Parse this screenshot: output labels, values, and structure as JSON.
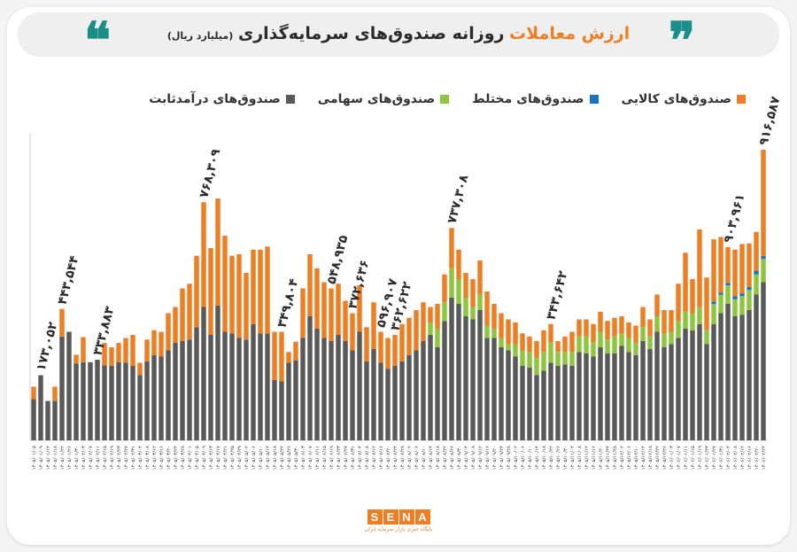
{
  "header": {
    "title_accent": "ارزش معاملات",
    "title_main": "روزانه صندوق‌های سرمایه‌گذاری",
    "title_unit": "(میلیارد ریال)"
  },
  "colors": {
    "fixed": "#595959",
    "equity": "#8cc63e",
    "mixed": "#1a75bc",
    "commodity": "#ef7d22",
    "accent": "#ef7d22",
    "quote": "#1a8e88"
  },
  "logo": {
    "letters": [
      "S",
      "E",
      "N",
      "A"
    ],
    "subtitle": "پایگاه خبری بازار سرمایه ایران"
  },
  "chart_data": {
    "type": "bar",
    "stacked": true,
    "ylim": [
      0,
      1000
    ],
    "grid": false,
    "legend": "top",
    "series": [
      {
        "name": "صندوق‌های درآمدثابت",
        "color": "#595959",
        "values": [
          133,
          210,
          127,
          127,
          335,
          350,
          248,
          252,
          252,
          260,
          242,
          240,
          252,
          250,
          240,
          210,
          255,
          275,
          270,
          290,
          315,
          320,
          325,
          365,
          430,
          340,
          435,
          350,
          345,
          330,
          325,
          375,
          345,
          345,
          195,
          190,
          250,
          258,
          330,
          400,
          360,
          330,
          320,
          340,
          320,
          290,
          350,
          255,
          295,
          250,
          230,
          240,
          255,
          275,
          290,
          320,
          340,
          300,
          385,
          460,
          440,
          400,
          390,
          420,
          330,
          330,
          300,
          290,
          270,
          240,
          235,
          210,
          225,
          250,
          240,
          245,
          240,
          285,
          280,
          270,
          300,
          280,
          280,
          305,
          285,
          275,
          320,
          295,
          350,
          300,
          310,
          330,
          360,
          355,
          375,
          310,
          375,
          410,
          440,
          400,
          405,
          420,
          470,
          510
        ]
      },
      {
        "name": "صندوق‌های سهامی",
        "color": "#8cc63e",
        "values": [
          0,
          0,
          0,
          0,
          0,
          0,
          0,
          0,
          0,
          0,
          0,
          0,
          0,
          0,
          0,
          0,
          0,
          0,
          0,
          0,
          0,
          0,
          0,
          0,
          0,
          0,
          0,
          0,
          0,
          0,
          0,
          0,
          0,
          0,
          0,
          0,
          0,
          0,
          0,
          0,
          0,
          0,
          0,
          0,
          0,
          0,
          0,
          0,
          0,
          0,
          0,
          0,
          0,
          0,
          0,
          0,
          40,
          60,
          60,
          95,
          80,
          60,
          40,
          50,
          40,
          30,
          30,
          20,
          40,
          50,
          50,
          55,
          60,
          65,
          45,
          40,
          45,
          50,
          55,
          45,
          50,
          45,
          55,
          40,
          45,
          40,
          45,
          40,
          50,
          45,
          40,
          55,
          55,
          55,
          55,
          45,
          65,
          60,
          60,
          55,
          60,
          65,
          65,
          75
        ]
      },
      {
        "name": "صندوق‌های مختلط",
        "color": "#1a75bc",
        "values": [
          0,
          0,
          0,
          0,
          0,
          0,
          0,
          0,
          0,
          0,
          0,
          0,
          0,
          0,
          0,
          0,
          0,
          0,
          0,
          0,
          0,
          0,
          0,
          0,
          0,
          0,
          0,
          0,
          0,
          0,
          0,
          0,
          0,
          0,
          0,
          0,
          0,
          0,
          0,
          0,
          0,
          0,
          0,
          0,
          0,
          0,
          0,
          0,
          0,
          0,
          0,
          0,
          0,
          0,
          0,
          0,
          0,
          0,
          0,
          0,
          0,
          0,
          0,
          0,
          0,
          0,
          0,
          0,
          0,
          0,
          0,
          0,
          0,
          0,
          0,
          0,
          0,
          0,
          0,
          0,
          0,
          0,
          0,
          0,
          0,
          0,
          0,
          0,
          0,
          0,
          0,
          0,
          0,
          0,
          0,
          0,
          8,
          6,
          8,
          10,
          8,
          10,
          12,
          10
        ]
      },
      {
        "name": "صندوق‌های کالایی",
        "color": "#ef7d22",
        "values": [
          40,
          0,
          0,
          46,
          89,
          0,
          28,
          81,
          0,
          0,
          72,
          60,
          62,
          80,
          100,
          40,
          70,
          80,
          80,
          120,
          115,
          170,
          180,
          230,
          338,
          280,
          345,
          310,
          250,
          270,
          215,
          240,
          270,
          280,
          155,
          160,
          35,
          60,
          160,
          200,
          195,
          180,
          170,
          165,
          130,
          120,
          150,
          110,
          150,
          100,
          100,
          100,
          120,
          120,
          130,
          125,
          50,
          80,
          90,
          130,
          95,
          80,
          90,
          110,
          110,
          80,
          80,
          80,
          70,
          55,
          50,
          55,
          70,
          60,
          35,
          50,
          65,
          55,
          55,
          60,
          65,
          60,
          60,
          55,
          50,
          55,
          65,
          55,
          70,
          75,
          70,
          120,
          190,
          110,
          250,
          170,
          200,
          180,
          115,
          150,
          160,
          140,
          125,
          342
        ]
      }
    ],
    "annotations": [
      "۱۷۳,۰۵۲",
      "۴۴۳,۵۴۴",
      "۳۳۳,۸۸۳",
      "۷۶۸,۳۰۹",
      "۳۴۹,۸۰۴",
      "۵۴۸,۹۳۵",
      "۳۷۲,۶۳۶",
      "۵۹۶,۹۰۷",
      "۳۶۲,۶۲۲",
      "۷۳۷,۳۰۸",
      "۳۴۳,۶۴۲",
      "۹۰۳,۹۶۱",
      "۹۱۶,۵۸۷"
    ],
    "categories": [
      "۱۴۰۵/۰۱/۰۵",
      "۱۴۰۵/۰۱/۰۹",
      "۱۴۰۵/۰۱/۱۴",
      "۱۴۰۵/۰۱/۱۸",
      "۱۴۰۵/۰۱/۲۲",
      "۱۴۰۵/۰۱/۲۶",
      "۱۴۰۵/۰۱/۳۰",
      "۱۴۰۵/۰۲/۰۳",
      "۱۴۰۵/۰۲/۰۷",
      "۱۴۰۵/۰۲/۱۱",
      "۱۴۰۵/۰۲/۱۵",
      "۱۴۰۵/۰۲/۱۹",
      "۱۴۰۵/۰۲/۲۳",
      "۱۴۰۵/۰۲/۲۷",
      "۱۴۰۵/۰۲/۳۱",
      "۱۴۰۵/۰۳/۰۴",
      "۱۴۰۵/۰۳/۰۸",
      "۱۴۰۵/۰۳/۱۲",
      "۱۴۰۵/۰۳/۱۶",
      "۱۴۰۵/۰۳/۲۰",
      "۱۴۰۵/۰۳/۲۴",
      "۱۴۰۵/۰۳/۲۸",
      "۱۴۰۵/۰۴/۰۱",
      "۱۴۰۵/۰۴/۰۵",
      "۱۴۰۵/۰۴/۰۹",
      "۱۴۰۵/۰۴/۱۳",
      "۱۴۰۵/۰۴/۱۷",
      "۱۴۰۵/۰۴/۲۱",
      "۱۴۰۵/۰۴/۲۵",
      "۱۴۰۵/۰۴/۲۹",
      "۱۴۰۵/۰۵/۰۲",
      "۱۴۰۵/۰۵/۰۶",
      "۱۴۰۵/۰۵/۱۰",
      "۱۴۰۵/۰۵/۱۴",
      "۱۴۰۵/۰۵/۱۸",
      "۱۴۰۵/۰۵/۲۲",
      "۱۴۰۵/۰۵/۲۶",
      "۱۴۰۵/۰۵/۳۰",
      "۱۴۰۵/۰۶/۰۳",
      "۱۴۰۵/۰۶/۰۷",
      "۱۴۰۵/۰۶/۱۱",
      "۱۴۰۵/۰۶/۱۵",
      "۱۴۰۵/۰۶/۱۹",
      "۱۴۰۵/۰۶/۲۳",
      "۱۴۰۵/۰۶/۲۷",
      "۱۴۰۵/۰۶/۳۱",
      "۱۴۰۵/۰۷/۰۴",
      "۱۴۰۵/۰۷/۰۸",
      "۱۴۰۵/۰۷/۱۲",
      "۱۴۰۵/۰۷/۱۶",
      "۱۴۰۵/۰۷/۲۰",
      "۱۴۰۵/۰۷/۲۴",
      "۱۴۰۵/۰۷/۲۸",
      "۱۴۰۵/۰۸/۰۲",
      "۱۴۰۵/۰۸/۰۶",
      "۱۴۰۵/۰۸/۱۰",
      "۱۴۰۵/۰۸/۱۴",
      "۱۴۰۵/۰۸/۱۸",
      "۱۴۰۵/۰۸/۲۲",
      "۱۴۰۵/۰۸/۲۶",
      "۱۴۰۵/۰۸/۳۰",
      "۱۴۰۵/۰۹/۰۴",
      "۱۴۰۵/۰۹/۰۸",
      "۱۴۰۵/۰۹/۱۲",
      "۱۴۰۵/۰۹/۱۶",
      "۱۴۰۵/۰۹/۲۰",
      "۱۴۰۵/۰۹/۲۴",
      "۱۴۰۵/۰۹/۲۸",
      "۱۴۰۵/۱۰/۰۲",
      "۱۴۰۵/۱۰/۰۶",
      "۱۴۰۵/۱۰/۱۰",
      "۱۴۰۵/۱۰/۱۴",
      "۱۴۰۵/۱۰/۱۸",
      "۱۴۰۵/۱۰/۲۲",
      "۱۴۰۵/۱۰/۲۶",
      "۱۴۰۵/۱۰/۳۰",
      "۱۴۰۵/۱۱/۰۴",
      "۱۴۰۵/۱۱/۰۸",
      "۱۴۰۵/۱۱/۱۲",
      "۱۴۰۵/۱۱/۱۶",
      "۱۴۰۵/۱۱/۲۰",
      "۱۴۰۵/۱۱/۲۴",
      "۱۴۰۵/۱۱/۲۸",
      "۱۴۰۵/۱۲/۰۲",
      "۱۴۰۵/۱۲/۰۶",
      "۱۴۰۵/۱۲/۱۰",
      "۱۴۰۵/۱۲/۱۴",
      "۱۴۰۵/۱۲/۱۸",
      "۱۴۰۵/۱۲/۲۲",
      "۱۴۰۵/۱۲/۲۶",
      "۱۴۰۶/۰۱/۰۳",
      "۱۴۰۶/۰۱/۰۷",
      "۱۴۰۶/۰۱/۱۱",
      "۱۴۰۶/۰۱/۱۵",
      "۱۴۰۶/۰۱/۱۹",
      "۱۴۰۶/۰۱/۲۳",
      "۱۴۰۶/۰۱/۲۷",
      "۱۴۰۶/۰۱/۳۱",
      "۱۴۰۶/۰۲/۰۴",
      "۱۴۰۶/۰۲/۰۸",
      "۱۴۰۶/۰۲/۱۲",
      "۱۴۰۶/۰۲/۱۶",
      "۱۴۰۶/۰۲/۲۰",
      "۱۴۰۶/۰۲/۲۴"
    ]
  }
}
